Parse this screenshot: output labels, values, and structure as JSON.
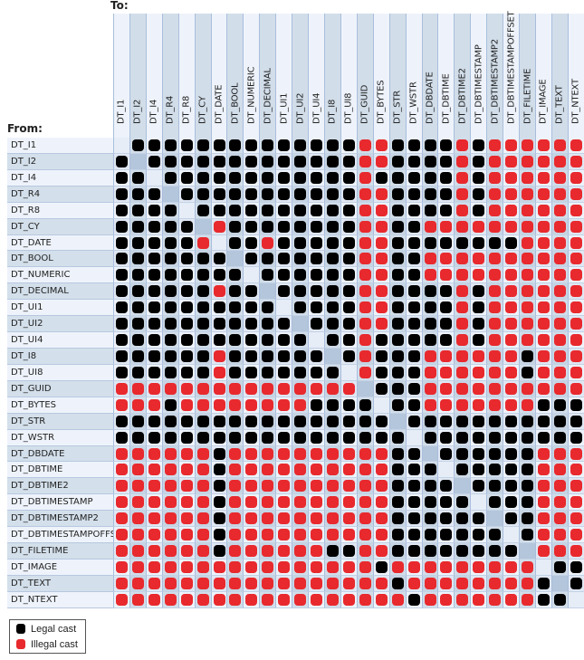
{
  "to_label": "To:",
  "from_label": "From:",
  "types": [
    "DT_I1",
    "DT_I2",
    "DT_I4",
    "DT_R4",
    "DT_R8",
    "DT_CY",
    "DT_DATE",
    "DT_BOOL",
    "DT_NUMERIC",
    "DT_DECIMAL",
    "DT_UI1",
    "DT_UI2",
    "DT_UI4",
    "DT_I8",
    "DT_UI8",
    "DT_GUID",
    "DT_BYTES",
    "DT_STR",
    "DT_WSTR",
    "DT_DBDATE",
    "DT_DBTIME",
    "DT_DBTIME2",
    "DT_DBTIMESTAMP",
    "DT_DBTIMESTAMP2",
    "DT_DBTIMESTAMPOFFSET",
    "DT_FILETIME",
    "DT_IMAGE",
    "DT_TEXT",
    "DT_NTEXT"
  ],
  "matrix_encoding": {
    "1": "Legal cast",
    "0": "Illegal cast",
    "-": "same type"
  },
  "matrix": [
    "-1111111111111100111101000000",
    "1-111111111111100111101000000",
    "11-11111111111101111101000000",
    "111-1111111111100111101000000",
    "1111-111111111100111101000000",
    "11111-01111111100110000000000",
    "111110-1101111100111111110000",
    "1111111-111111100110000000000",
    "11111111-11111100110000000000",
    "111111011-1111100111101000000",
    "1111111111-111100111101000000",
    "11111111111-11100111101000000",
    "111111111111-1101111101000000",
    "1111110111111-101110000001000",
    "11111101111111-01110000001000",
    "000000000000000-1110000000000",
    "0001000000001111-110000000111",
    "11111111111111111-11111111111",
    "111111111111111111-1111111111",
    "0000001000000000011-111111000",
    "00000010000000000111-11111000",
    "000000100000000001111-1111000",
    "0000001000000000011111-111000",
    "00000010000000000111111-11000",
    "000000100000000001111111-1000",
    "0000001000000110011111111-000",
    "00000000000000001000000000-11",
    "000000000000000001000000001-1",
    "0000000000000000001000000011-"
  ],
  "legend": {
    "legal_label": "Legal cast",
    "illegal_label": "Illegal cast"
  },
  "colors": {
    "legal": "#000000",
    "illegal": "#e8292d"
  }
}
